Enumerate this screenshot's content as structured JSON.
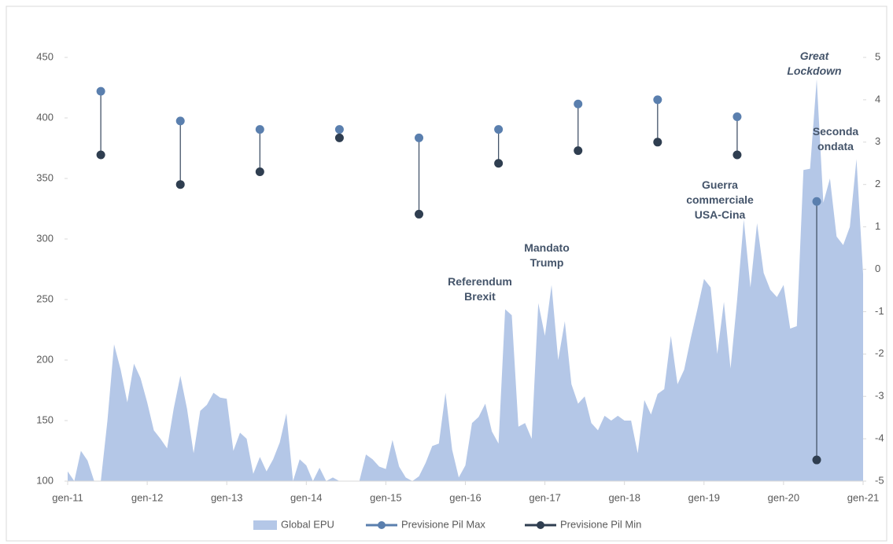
{
  "chart_data": {
    "type": "area-dumbbell",
    "categories": [
      "gen-11",
      null,
      null,
      null,
      null,
      null,
      null,
      null,
      null,
      null,
      null,
      null,
      "gen-12",
      null,
      null,
      null,
      null,
      null,
      null,
      null,
      null,
      null,
      null,
      null,
      "gen-13",
      null,
      null,
      null,
      null,
      null,
      null,
      null,
      null,
      null,
      null,
      null,
      "gen-14",
      null,
      null,
      null,
      null,
      null,
      null,
      null,
      null,
      null,
      null,
      null,
      "gen-15",
      null,
      null,
      null,
      null,
      null,
      null,
      null,
      null,
      null,
      null,
      null,
      "gen-16",
      null,
      null,
      null,
      null,
      null,
      null,
      null,
      null,
      null,
      null,
      null,
      "gen-17",
      null,
      null,
      null,
      null,
      null,
      null,
      null,
      null,
      null,
      null,
      null,
      "gen-18",
      null,
      null,
      null,
      null,
      null,
      null,
      null,
      null,
      null,
      null,
      null,
      "gen-19",
      null,
      null,
      null,
      null,
      null,
      null,
      null,
      null,
      null,
      null,
      null,
      "gen-20",
      null,
      null,
      null,
      null,
      null,
      null,
      null,
      null,
      null,
      null,
      null,
      "gen-21"
    ],
    "series": [
      {
        "name": "Global EPU",
        "color": "#b4c7e7",
        "axis": "y",
        "values": [
          108,
          100,
          125,
          117,
          100,
          100,
          150,
          213,
          192,
          165,
          197,
          185,
          165,
          142,
          135,
          127,
          160,
          187,
          160,
          123,
          158,
          163,
          173,
          169,
          168,
          125,
          140,
          135,
          106,
          120,
          108,
          118,
          132,
          156,
          100,
          118,
          113,
          100,
          111,
          100,
          103,
          100,
          100,
          100,
          100,
          122,
          118,
          112,
          110,
          134,
          112,
          103,
          100,
          104,
          115,
          129,
          131,
          173,
          126,
          103,
          113,
          148,
          153,
          164,
          141,
          131,
          242,
          237,
          145,
          148,
          135,
          247,
          220,
          262,
          200,
          232,
          180,
          164,
          170,
          148,
          142,
          154,
          150,
          154,
          150,
          150,
          123,
          167,
          155,
          172,
          176,
          220,
          180,
          192,
          218,
          242,
          267,
          260,
          205,
          248,
          193,
          250,
          316,
          260,
          313,
          272,
          258,
          252,
          262,
          226,
          228,
          357,
          358,
          432,
          330,
          350,
          302,
          295,
          310,
          366,
          271
        ]
      },
      {
        "name": "Previsione Pil Max",
        "color": "#5a7fae",
        "axis": "y2",
        "values": [
          null,
          null,
          null,
          null,
          null,
          4.2,
          null,
          null,
          null,
          null,
          null,
          null,
          null,
          null,
          null,
          null,
          null,
          3.5,
          null,
          null,
          null,
          null,
          null,
          null,
          null,
          null,
          null,
          null,
          null,
          3.3,
          null,
          null,
          null,
          null,
          null,
          null,
          null,
          null,
          null,
          null,
          null,
          3.3,
          null,
          null,
          null,
          null,
          null,
          null,
          null,
          null,
          null,
          null,
          null,
          3.1,
          null,
          null,
          null,
          null,
          null,
          null,
          null,
          null,
          null,
          null,
          null,
          3.3,
          null,
          null,
          null,
          null,
          null,
          null,
          null,
          null,
          null,
          null,
          null,
          3.9,
          null,
          null,
          null,
          null,
          null,
          null,
          null,
          null,
          null,
          null,
          null,
          4.0,
          null,
          null,
          null,
          null,
          null,
          null,
          null,
          null,
          null,
          null,
          null,
          3.6,
          null,
          null,
          null,
          null,
          null,
          null,
          null,
          null,
          null,
          null,
          null,
          1.6,
          null,
          null,
          null,
          null,
          null,
          null,
          null
        ]
      },
      {
        "name": "Previsione Pil Min",
        "color": "#2f3e50",
        "axis": "y2",
        "values": [
          null,
          null,
          null,
          null,
          null,
          2.7,
          null,
          null,
          null,
          null,
          null,
          null,
          null,
          null,
          null,
          null,
          null,
          2.0,
          null,
          null,
          null,
          null,
          null,
          null,
          null,
          null,
          null,
          null,
          null,
          2.3,
          null,
          null,
          null,
          null,
          null,
          null,
          null,
          null,
          null,
          null,
          null,
          3.1,
          null,
          null,
          null,
          null,
          null,
          null,
          null,
          null,
          null,
          null,
          null,
          1.3,
          null,
          null,
          null,
          null,
          null,
          null,
          null,
          null,
          null,
          null,
          null,
          2.5,
          null,
          null,
          null,
          null,
          null,
          null,
          null,
          null,
          null,
          null,
          null,
          2.8,
          null,
          null,
          null,
          null,
          null,
          null,
          null,
          null,
          null,
          null,
          null,
          3.0,
          null,
          null,
          null,
          null,
          null,
          null,
          null,
          null,
          null,
          null,
          null,
          2.7,
          null,
          null,
          null,
          null,
          null,
          null,
          null,
          null,
          null,
          null,
          null,
          -4.5,
          null,
          null,
          null,
          null,
          null,
          null,
          null
        ]
      }
    ],
    "ylim": [
      100,
      450
    ],
    "yticks": [
      100,
      150,
      200,
      250,
      300,
      350,
      400,
      450
    ],
    "y2lim": [
      -5,
      5
    ],
    "y2ticks": [
      -5,
      -4,
      -3,
      -2,
      -1,
      0,
      1,
      2,
      3,
      4,
      5
    ],
    "annotations": [
      {
        "lines": [
          "Referendum",
          "Brexit"
        ]
      },
      {
        "lines": [
          "Mandato",
          "Trump"
        ]
      },
      {
        "lines": [
          "Guerra",
          "commerciale",
          "USA-Cina"
        ]
      },
      {
        "lines": [
          "Great",
          "Lockdown"
        ]
      },
      {
        "lines": [
          "Seconda",
          "ondata"
        ]
      }
    ],
    "grid": false,
    "legend": "bottom"
  }
}
